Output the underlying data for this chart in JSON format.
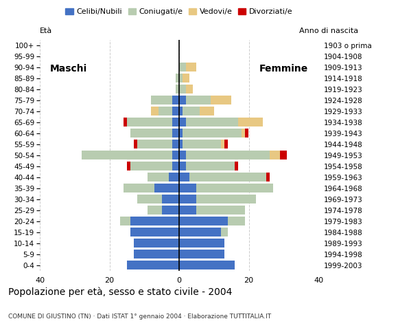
{
  "age_groups": [
    "0-4",
    "5-9",
    "10-14",
    "15-19",
    "20-24",
    "25-29",
    "30-34",
    "35-39",
    "40-44",
    "45-49",
    "50-54",
    "55-59",
    "60-64",
    "65-69",
    "70-74",
    "75-79",
    "80-84",
    "85-89",
    "90-94",
    "95-99",
    "100+"
  ],
  "birth_years": [
    "1999-2003",
    "1994-1998",
    "1989-1993",
    "1984-1988",
    "1979-1983",
    "1974-1978",
    "1969-1973",
    "1964-1968",
    "1959-1963",
    "1954-1958",
    "1949-1953",
    "1944-1948",
    "1939-1943",
    "1934-1938",
    "1929-1933",
    "1924-1928",
    "1919-1923",
    "1914-1918",
    "1909-1913",
    "1904-1908",
    "1903 o prima"
  ],
  "colors": {
    "celibe": "#4472C4",
    "coniugato": "#B8CCB0",
    "vedovo": "#E8C882",
    "divorziato": "#CC0000"
  },
  "males": {
    "celibe": [
      15,
      13,
      13,
      14,
      14,
      5,
      5,
      7,
      3,
      2,
      2,
      2,
      2,
      2,
      2,
      2,
      0,
      0,
      0,
      0,
      0
    ],
    "coniugato": [
      0,
      0,
      0,
      0,
      3,
      4,
      7,
      9,
      6,
      12,
      26,
      10,
      12,
      13,
      4,
      6,
      1,
      1,
      0,
      0,
      0
    ],
    "vedovo": [
      0,
      0,
      0,
      0,
      0,
      0,
      0,
      0,
      0,
      0,
      0,
      0,
      0,
      0,
      2,
      0,
      0,
      0,
      0,
      0,
      0
    ],
    "divorziato": [
      0,
      0,
      0,
      0,
      0,
      0,
      0,
      0,
      0,
      1,
      0,
      1,
      0,
      1,
      0,
      0,
      0,
      0,
      0,
      0,
      0
    ]
  },
  "females": {
    "celibe": [
      16,
      13,
      13,
      12,
      14,
      5,
      5,
      5,
      3,
      2,
      2,
      1,
      1,
      2,
      1,
      2,
      0,
      0,
      0,
      0,
      0
    ],
    "coniugato": [
      0,
      0,
      0,
      2,
      5,
      14,
      17,
      22,
      22,
      14,
      24,
      11,
      17,
      15,
      5,
      7,
      2,
      1,
      2,
      0,
      0
    ],
    "vedovo": [
      0,
      0,
      0,
      0,
      0,
      0,
      0,
      0,
      0,
      0,
      3,
      1,
      1,
      7,
      4,
      6,
      2,
      2,
      3,
      0,
      0
    ],
    "divorziato": [
      0,
      0,
      0,
      0,
      0,
      0,
      0,
      0,
      1,
      1,
      2,
      1,
      1,
      0,
      0,
      0,
      0,
      0,
      0,
      0,
      0
    ]
  },
  "title": "Popolazione per età, sesso e stato civile - 2004",
  "subtitle": "COMUNE DI GIUSTINO (TN) · Dati ISTAT 1° gennaio 2004 · Elaborazione TUTTITALIA.IT",
  "label_eta": "Età",
  "label_anno": "Anno di nascita",
  "label_maschi": "Maschi",
  "label_femmine": "Femmine",
  "xlim": 40,
  "bg_color": "#FFFFFF",
  "grid_color": "#CCCCCC",
  "legend_labels": [
    "Celibi/Nubili",
    "Coniugati/e",
    "Vedovi/e",
    "Divorziati/e"
  ]
}
